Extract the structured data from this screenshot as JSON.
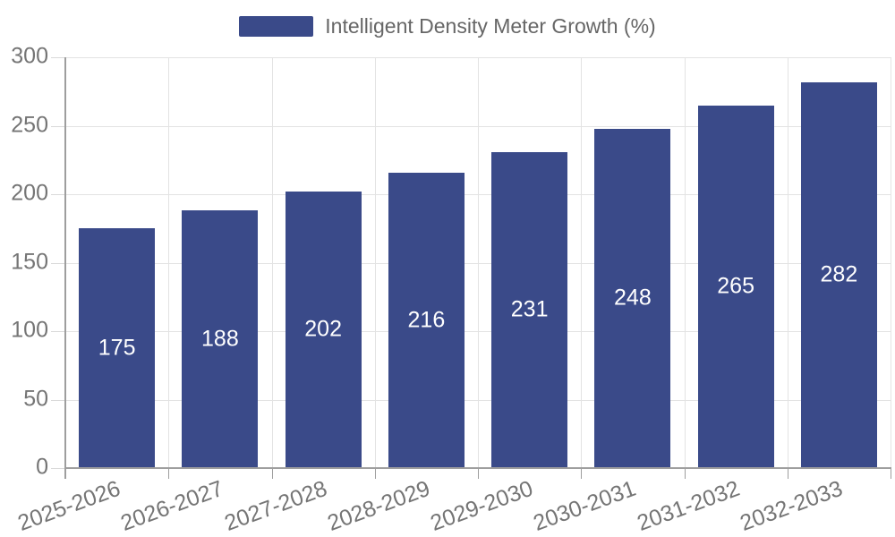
{
  "legend": {
    "label": "Intelligent Density Meter Growth (%)",
    "swatch_color": "#3A4A89"
  },
  "colors": {
    "bar": "#3A4A89",
    "value_label": "#FFFFFF",
    "axis_label": "#757575",
    "legend_text": "#666666",
    "gridline": "#E3E3E3",
    "y_tick": "#D9D9D9",
    "axis_line": "#9E9E9E",
    "background": "#FFFFFF"
  },
  "chart_data": {
    "type": "bar",
    "title": "",
    "legend_entries": [
      "Intelligent Density Meter Growth (%)"
    ],
    "legend_position": "top-center",
    "categories": [
      "2025-2026",
      "2026-2027",
      "2027-2028",
      "2028-2029",
      "2029-2030",
      "2030-2031",
      "2031-2032",
      "2032-2033"
    ],
    "values": [
      175,
      188,
      202,
      216,
      231,
      248,
      265,
      282
    ],
    "xlabel": "",
    "ylabel": "",
    "ylim": [
      0,
      300
    ],
    "yticks": [
      0,
      50,
      100,
      150,
      200,
      250,
      300
    ],
    "grid": true,
    "x_tick_rotation_deg": -20,
    "value_label_position": "inside-center",
    "value_label_color": "#FFFFFF"
  }
}
